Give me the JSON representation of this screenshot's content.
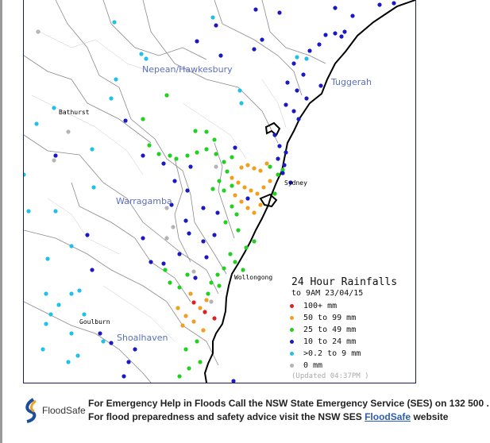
{
  "map": {
    "catchments": {
      "nepean": "Nepean/Hawkesbury",
      "tuggerah": "Tuggerah",
      "warragamba": "Warragamba",
      "shoalhaven": "Shoalhaven"
    },
    "towns": {
      "bathurst": "Bathurst",
      "sydney": "Sydney",
      "wollongong": "Wollongong",
      "goulburn": "Goulburn"
    }
  },
  "legend": {
    "title": "24 Hour Rainfalls",
    "subtitle": "to 9AM 23/04/15",
    "items": [
      {
        "label": "100+ mm",
        "color": "#e02020"
      },
      {
        "label": "50  to 99 mm",
        "color": "#f0a020"
      },
      {
        "label": "25  to 49 mm",
        "color": "#22d022"
      },
      {
        "label": "10  to 24 mm",
        "color": "#1a1ac0"
      },
      {
        "label": ">0.2 to 9 mm",
        "color": "#20c0e8"
      },
      {
        "label": "0 mm",
        "color": "#b4b4b4"
      }
    ],
    "updated": "(Updated 04:37PM  )"
  },
  "footer": {
    "logo_text": "FloodSafe",
    "line1": "For Emergency Help in Floods Call the NSW State Emergency Service (SES) on 132 500 .",
    "line2_prefix": "For flood preparedness and safety advice visit the NSW SES ",
    "line2_link": "FloodSafe",
    "line2_suffix": " website"
  }
}
